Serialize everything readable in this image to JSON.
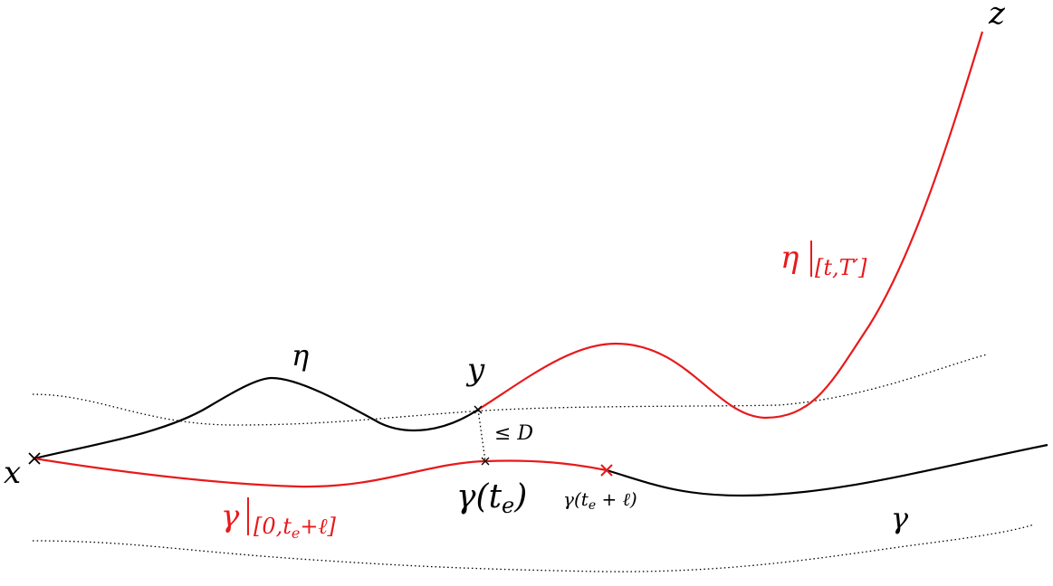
{
  "colors": {
    "black": "#000000",
    "red": "#e8191b"
  },
  "labels": {
    "x": "x",
    "y": "y",
    "z": "z",
    "eta": "η",
    "eta_restricted": {
      "base": "η",
      "sub": "[t,T′]"
    },
    "gamma": "γ",
    "gamma_restricted": {
      "base": "γ",
      "sub_pre": "[0,",
      "sub_t": "t",
      "sub_e": "e",
      "sub_post": "+ℓ]"
    },
    "gamma_te": {
      "pre": "γ(",
      "t": "t",
      "e": "e",
      "post": ")"
    },
    "gamma_te_l": {
      "pre": "γ(",
      "t": "t",
      "e": "e",
      "post": " + ℓ)"
    },
    "le_d": "≤ D"
  }
}
